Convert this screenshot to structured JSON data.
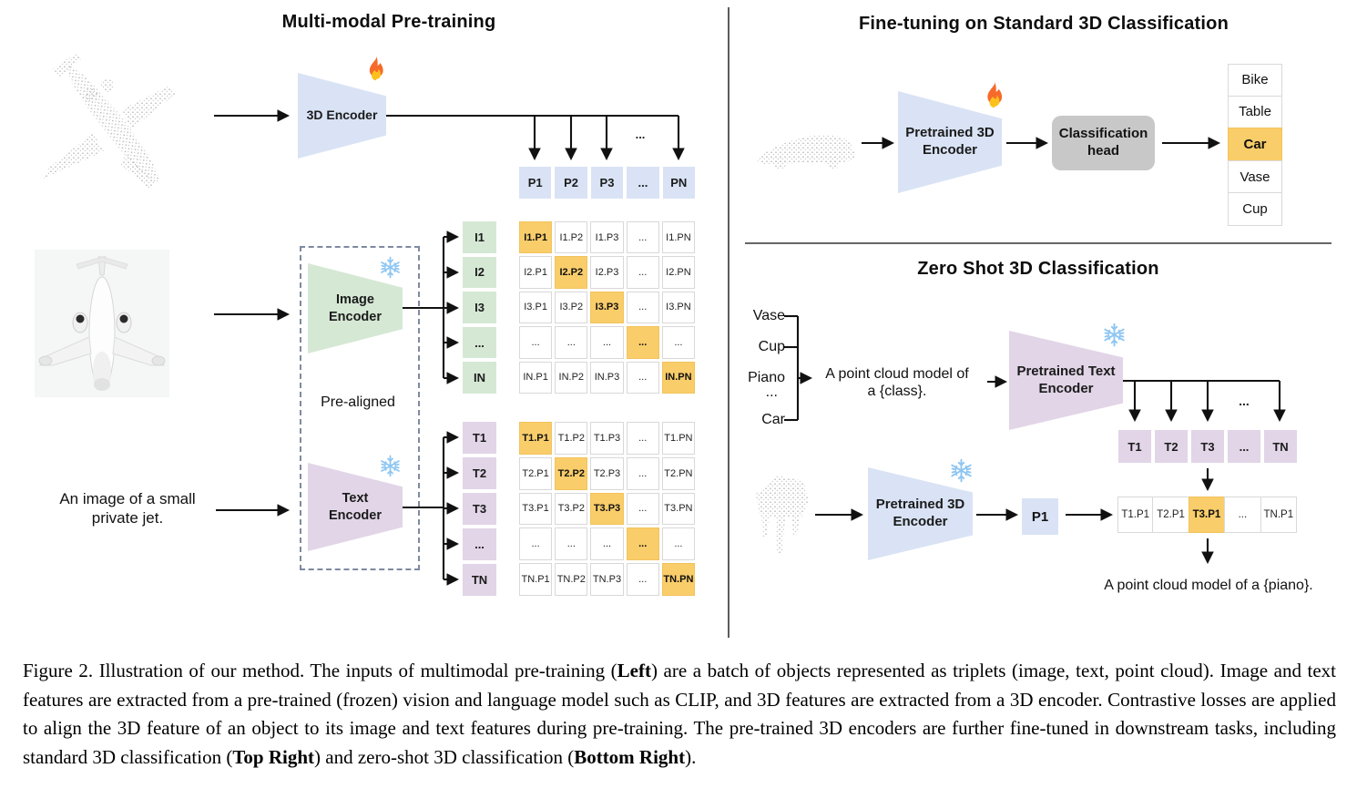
{
  "left": {
    "title": "Multi-modal Pre-training",
    "encoder3d_label": "3D Encoder",
    "p_row": [
      "P1",
      "P2",
      "P3",
      "...",
      "PN"
    ],
    "fan_ellipsis": "...",
    "image_encoder_label": "Image Encoder",
    "text_encoder_label": "Text Encoder",
    "prealigned": "Pre-aligned",
    "jet_caption_line1": "An image of a small",
    "jet_caption_line2": "private jet.",
    "i_labels": [
      "I1",
      "I2",
      "I3",
      "...",
      "IN"
    ],
    "i_matrix": [
      [
        "I1.P1",
        "I1.P2",
        "I1.P3",
        "...",
        "I1.PN"
      ],
      [
        "I2.P1",
        "I2.P2",
        "I2.P3",
        "...",
        "I2.PN"
      ],
      [
        "I3.P1",
        "I3.P2",
        "I3.P3",
        "...",
        "I3.PN"
      ],
      [
        "...",
        "...",
        "...",
        "...",
        "..."
      ],
      [
        "IN.P1",
        "IN.P2",
        "IN.P3",
        "...",
        "IN.PN"
      ]
    ],
    "t_labels": [
      "T1",
      "T2",
      "T3",
      "...",
      "TN"
    ],
    "t_matrix": [
      [
        "T1.P1",
        "T1.P2",
        "T1.P3",
        "...",
        "T1.PN"
      ],
      [
        "T2.P1",
        "T2.P2",
        "T2.P3",
        "...",
        "T2.PN"
      ],
      [
        "T3.P1",
        "T3.P2",
        "T3.P3",
        "...",
        "T3.PN"
      ],
      [
        "...",
        "...",
        "...",
        "...",
        "..."
      ],
      [
        "TN.P1",
        "TN.P2",
        "TN.P3",
        "...",
        "TN.PN"
      ]
    ]
  },
  "finetune": {
    "title": "Fine-tuning on Standard 3D Classification",
    "encoder_label": "Pretrained 3D Encoder",
    "head_label": "Classification head",
    "classes": [
      "Bike",
      "Table",
      "Car",
      "Vase",
      "Cup"
    ],
    "highlighted_class": "Car"
  },
  "zeroshot": {
    "title": "Zero Shot 3D Classification",
    "class_prompt_1": "Vase",
    "class_prompt_2": "Cup",
    "class_prompt_3": "Piano",
    "class_prompt_4": "...",
    "class_prompt_5": "Car",
    "prompt_line1": "A point cloud model of",
    "prompt_line2": "a {class}.",
    "text_encoder_label": "Pretrained Text Encoder",
    "encoder_label": "Pretrained 3D Encoder",
    "t_row": [
      "T1",
      "T2",
      "T3",
      "...",
      "TN"
    ],
    "fan_ellipsis": "...",
    "p_chip": "P1",
    "tp_row": [
      "T1.P1",
      "T2.P1",
      "T3.P1",
      "...",
      "TN.P1"
    ],
    "result": "A point cloud model of a {piano}."
  },
  "icons": {
    "flame": "flame (trainable)",
    "snowflake": "snowflake (frozen)"
  },
  "colors": {
    "encoder_blue": "#d9e3f5",
    "encoder_green": "#d5e8d4",
    "encoder_purple": "#e1d5e7",
    "highlight_orange": "#f9cd6a",
    "head_gray": "#c8c8c8",
    "pointcloud_gray": "#b5b5b5"
  },
  "caption": {
    "segments": [
      {
        "text": "Figure 2. Illustration of our method. The inputs of multimodal pre-training (",
        "bold": false
      },
      {
        "text": "Left",
        "bold": true
      },
      {
        "text": ") are a batch of objects represented as triplets (image, text, point cloud). Image and text features are extracted from a pre-trained (frozen) vision and language model such as CLIP, and 3D features are extracted from a 3D encoder. Contrastive losses are applied to align the 3D feature of an object to its image and text features during pre-training. The pre-trained 3D encoders are further fine-tuned in downstream tasks, including standard 3D classification (",
        "bold": false
      },
      {
        "text": "Top Right",
        "bold": true
      },
      {
        "text": ") and zero-shot 3D classification (",
        "bold": false
      },
      {
        "text": "Bottom Right",
        "bold": true
      },
      {
        "text": ").",
        "bold": false
      }
    ]
  }
}
